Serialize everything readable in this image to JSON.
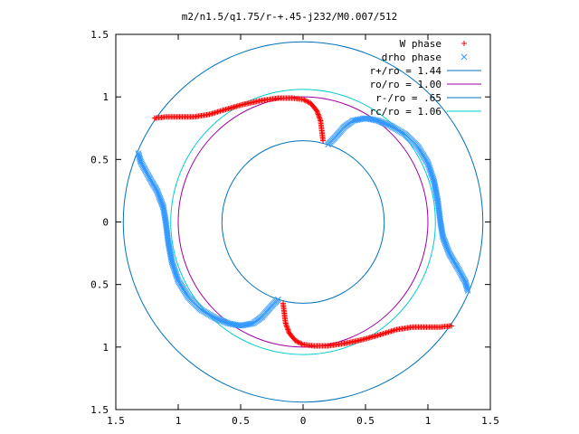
{
  "chart_data": {
    "type": "scatter",
    "title": "m2/n1.5/q1.75/r-+.45-j232/M0.007/512",
    "xlim": [
      -1.5,
      1.5
    ],
    "ylim": [
      -1.5,
      1.5
    ],
    "xticks": [
      "1.5",
      "1",
      "0.5",
      "0",
      "0.5",
      "1",
      "1.5"
    ],
    "yticks": [
      "1.5",
      "1",
      "0.5",
      "0",
      "0.5",
      "1",
      "1.5"
    ],
    "grid": false,
    "legend_position": "top-right",
    "series": [
      {
        "name": "W phase",
        "marker": "+",
        "color": "#ff0000",
        "branches": [
          [
            [
              -1.19,
              0.83
            ],
            [
              -1.1,
              0.84
            ],
            [
              -1.0,
              0.84
            ],
            [
              -0.88,
              0.84
            ],
            [
              -0.75,
              0.86
            ],
            [
              -0.62,
              0.9
            ],
            [
              -0.48,
              0.94
            ],
            [
              -0.34,
              0.97
            ],
            [
              -0.2,
              0.99
            ],
            [
              -0.08,
              0.99
            ],
            [
              0.0,
              0.98
            ],
            [
              0.06,
              0.95
            ],
            [
              0.11,
              0.89
            ],
            [
              0.14,
              0.81
            ],
            [
              0.15,
              0.73
            ],
            [
              0.16,
              0.65
            ]
          ],
          [
            [
              1.19,
              -0.83
            ],
            [
              1.1,
              -0.84
            ],
            [
              1.0,
              -0.84
            ],
            [
              0.88,
              -0.84
            ],
            [
              0.75,
              -0.86
            ],
            [
              0.62,
              -0.9
            ],
            [
              0.48,
              -0.94
            ],
            [
              0.34,
              -0.97
            ],
            [
              0.2,
              -0.99
            ],
            [
              0.08,
              -0.99
            ],
            [
              0.0,
              -0.98
            ],
            [
              -0.06,
              -0.95
            ],
            [
              -0.11,
              -0.89
            ],
            [
              -0.14,
              -0.81
            ],
            [
              -0.15,
              -0.73
            ],
            [
              -0.16,
              -0.65
            ]
          ]
        ]
      },
      {
        "name": "drho phase",
        "marker": "x",
        "color": "#3399ff",
        "branches": [
          [
            [
              0.2,
              0.62
            ],
            [
              0.26,
              0.68
            ],
            [
              0.33,
              0.76
            ],
            [
              0.4,
              0.81
            ],
            [
              0.5,
              0.83
            ],
            [
              0.6,
              0.81
            ],
            [
              0.7,
              0.77
            ],
            [
              0.82,
              0.7
            ],
            [
              0.92,
              0.6
            ],
            [
              1.0,
              0.47
            ],
            [
              1.05,
              0.32
            ],
            [
              1.08,
              0.16
            ],
            [
              1.1,
              0.0
            ],
            [
              1.12,
              -0.12
            ],
            [
              1.17,
              -0.25
            ],
            [
              1.24,
              -0.37
            ],
            [
              1.3,
              -0.48
            ],
            [
              1.32,
              -0.55
            ]
          ],
          [
            [
              -0.2,
              -0.62
            ],
            [
              -0.26,
              -0.68
            ],
            [
              -0.33,
              -0.76
            ],
            [
              -0.4,
              -0.81
            ],
            [
              -0.5,
              -0.83
            ],
            [
              -0.6,
              -0.81
            ],
            [
              -0.7,
              -0.77
            ],
            [
              -0.82,
              -0.7
            ],
            [
              -0.92,
              -0.6
            ],
            [
              -1.0,
              -0.47
            ],
            [
              -1.05,
              -0.32
            ],
            [
              -1.08,
              -0.16
            ],
            [
              -1.1,
              0.0
            ],
            [
              -1.12,
              0.12
            ],
            [
              -1.17,
              0.25
            ],
            [
              -1.24,
              0.37
            ],
            [
              -1.3,
              0.48
            ],
            [
              -1.32,
              0.55
            ]
          ]
        ]
      },
      {
        "name": "r+/ro = 1.44",
        "type": "circle",
        "radius": 1.44,
        "color": "#0072bd"
      },
      {
        "name": "ro/ro = 1.00",
        "type": "circle",
        "radius": 1.0,
        "color": "#a000a0"
      },
      {
        "name": "r-/ro = .65",
        "type": "circle",
        "radius": 0.65,
        "color": "#0072bd"
      },
      {
        "name": "rc/ro = 1.06",
        "type": "circle",
        "radius": 1.06,
        "color": "#00cccc"
      }
    ]
  }
}
